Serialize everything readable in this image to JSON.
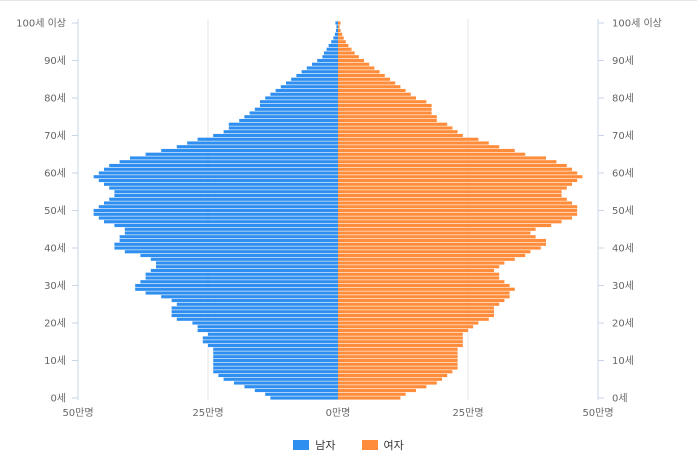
{
  "chart_data": {
    "type": "bar",
    "orientation": "horizontal-population-pyramid",
    "x_unit": "만명",
    "xlim": [
      -50,
      50
    ],
    "x_ticks": [
      "50만명",
      "25만명",
      "0만명",
      "25만명",
      "50만명"
    ],
    "y_ticks": [
      "0세",
      "10세",
      "20세",
      "30세",
      "40세",
      "50세",
      "60세",
      "70세",
      "80세",
      "90세",
      "100세 이상"
    ],
    "ages": [
      0,
      1,
      2,
      3,
      4,
      5,
      6,
      7,
      8,
      9,
      10,
      11,
      12,
      13,
      14,
      15,
      16,
      17,
      18,
      19,
      20,
      21,
      22,
      23,
      24,
      25,
      26,
      27,
      28,
      29,
      30,
      31,
      32,
      33,
      34,
      35,
      36,
      37,
      38,
      39,
      40,
      41,
      42,
      43,
      44,
      45,
      46,
      47,
      48,
      49,
      50,
      51,
      52,
      53,
      54,
      55,
      56,
      57,
      58,
      59,
      60,
      61,
      62,
      63,
      64,
      65,
      66,
      67,
      68,
      69,
      70,
      71,
      72,
      73,
      74,
      75,
      76,
      77,
      78,
      79,
      80,
      81,
      82,
      83,
      84,
      85,
      86,
      87,
      88,
      89,
      90,
      91,
      92,
      93,
      94,
      95,
      96,
      97,
      98,
      99,
      100
    ],
    "series": [
      {
        "name": "남자",
        "color": "#2f8ff0",
        "values": [
          13,
          14,
          16,
          18,
          20,
          22,
          23,
          24,
          24,
          24,
          24,
          24,
          24,
          24,
          25,
          26,
          26,
          25,
          27,
          27,
          28,
          31,
          32,
          32,
          32,
          31,
          32,
          34,
          37,
          39,
          39,
          38,
          37,
          37,
          36,
          35,
          35,
          36,
          38,
          41,
          43,
          43,
          42,
          42,
          41,
          41,
          43,
          45,
          46,
          47,
          47,
          46,
          45,
          44,
          43,
          43,
          44,
          45,
          46,
          47,
          46,
          45,
          44,
          42,
          40,
          37,
          34,
          31,
          29,
          27,
          24,
          22,
          21,
          21,
          19,
          18,
          17,
          16,
          15,
          15,
          14,
          13,
          12,
          11,
          10,
          9,
          8,
          7,
          6,
          5,
          4,
          3,
          2.7,
          2.2,
          1.8,
          1.3,
          0.9,
          0.6,
          0.4,
          0.3,
          0.5
        ]
      },
      {
        "name": "여자",
        "color": "#ff8c3a",
        "values": [
          12,
          13,
          15,
          17,
          19,
          20,
          21,
          22,
          23,
          23,
          23,
          23,
          23,
          23,
          24,
          24,
          24,
          24,
          25,
          26,
          27,
          29,
          30,
          30,
          30,
          31,
          32,
          33,
          33,
          34,
          33,
          32,
          31,
          31,
          30,
          31,
          32,
          34,
          36,
          37,
          39,
          40,
          40,
          38,
          37,
          38,
          41,
          43,
          45,
          46,
          46,
          46,
          45,
          44,
          43,
          43,
          44,
          45,
          46,
          47,
          46,
          45,
          44,
          42,
          40,
          36,
          34,
          31,
          29,
          27,
          24,
          23,
          22,
          21,
          19,
          19,
          18,
          18,
          18,
          17,
          15,
          14,
          13,
          12,
          11,
          10,
          9,
          8,
          7,
          6,
          5,
          4,
          3.2,
          2.6,
          2,
          1.5,
          1.1,
          0.8,
          0.5,
          0.3,
          0.5
        ]
      }
    ],
    "legend_position": "bottom-center",
    "grid": true
  }
}
